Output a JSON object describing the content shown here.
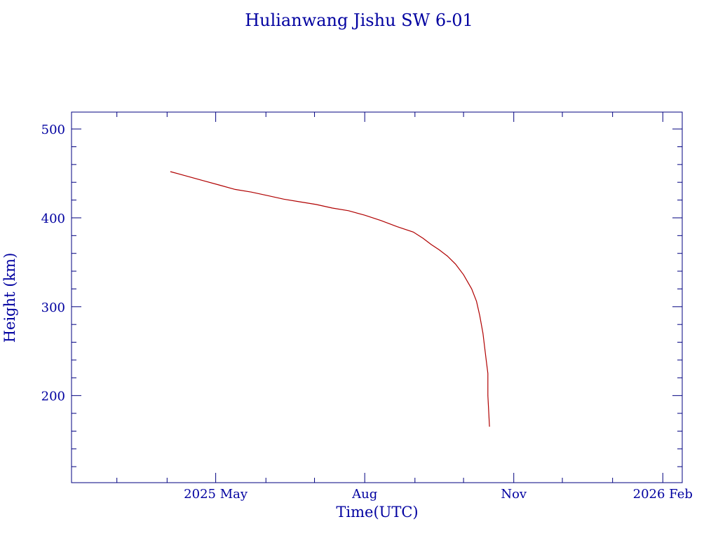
{
  "chart_data": {
    "type": "line",
    "title": "Hulianwang Jishu SW 6-01",
    "xlabel": "Time(UTC)",
    "ylabel": "Height (km)",
    "x_tick_labels": [
      {
        "date": "2025-05-01",
        "label": "2025 May"
      },
      {
        "date": "2025-08-01",
        "label": "Aug"
      },
      {
        "date": "2025-11-01",
        "label": "Nov"
      },
      {
        "date": "2026-02-01",
        "label": "2026 Feb"
      }
    ],
    "x_minor_dates": [
      "2025-03-01",
      "2025-04-01",
      "2025-06-01",
      "2025-07-01",
      "2025-09-01",
      "2025-10-01",
      "2025-12-01",
      "2026-01-01"
    ],
    "xlim": [
      "2025-02-01",
      "2026-02-13"
    ],
    "y_tick_labels": [
      200,
      300,
      400,
      500
    ],
    "y_minor_ticks": [
      120,
      140,
      160,
      180,
      220,
      240,
      260,
      280,
      320,
      340,
      360,
      380,
      420,
      440,
      460,
      480
    ],
    "ylim": [
      102,
      519
    ],
    "grid": false,
    "colors": {
      "axes": "#000080",
      "text": "#0000a0",
      "series": "#b00000"
    },
    "series": [
      {
        "x": [
          "2025-04-03",
          "2025-04-13",
          "2025-04-23",
          "2025-05-03",
          "2025-05-13",
          "2025-05-23",
          "2025-06-02",
          "2025-06-12",
          "2025-06-22",
          "2025-07-02",
          "2025-07-12",
          "2025-07-22",
          "2025-08-01",
          "2025-08-11",
          "2025-08-21",
          "2025-08-31",
          "2025-09-06",
          "2025-09-11",
          "2025-09-16",
          "2025-09-21",
          "2025-09-26",
          "2025-10-01",
          "2025-10-06",
          "2025-10-09",
          "2025-10-11",
          "2025-10-13",
          "2025-10-14",
          "2025-10-15",
          "2025-10-16",
          "2025-10-16",
          "2025-10-17"
        ],
        "y": [
          452,
          447,
          442,
          437,
          432,
          429,
          425,
          421,
          418,
          415,
          411,
          408,
          403,
          397,
          390,
          384,
          377,
          370,
          364,
          357,
          348,
          336,
          320,
          306,
          290,
          270,
          255,
          240,
          225,
          200,
          165
        ]
      }
    ]
  }
}
